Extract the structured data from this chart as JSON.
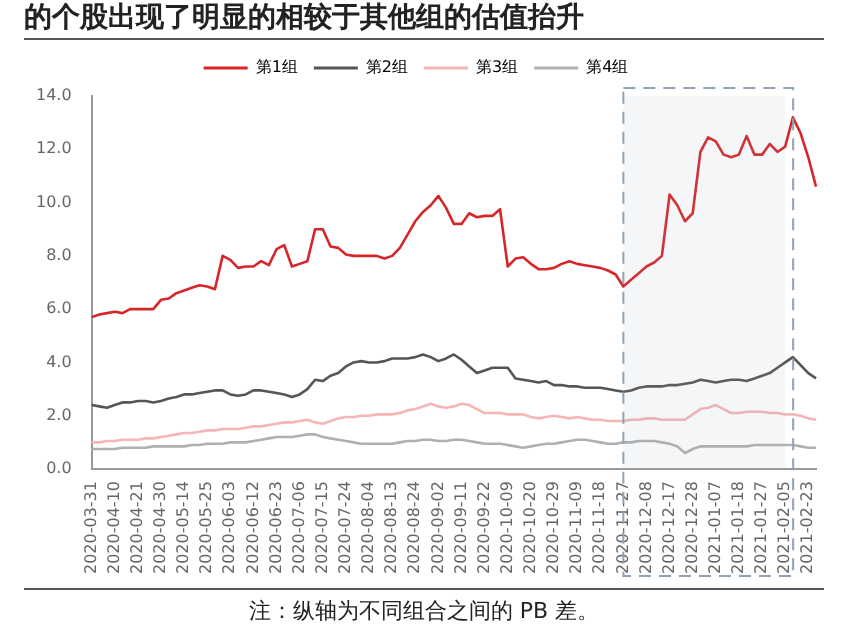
{
  "chart_data": {
    "type": "line",
    "title": "的个股出现了明显的相较于其他组的估值抬升",
    "annotations": [
      "注：纵轴为不同组合之间的 PB 差。"
    ],
    "categories": [
      "2020-03-31",
      null,
      null,
      "2020-04-10",
      null,
      null,
      "2020-04-21",
      null,
      null,
      "2020-04-30",
      null,
      null,
      "2020-05-14",
      null,
      null,
      "2020-05-25",
      null,
      null,
      "2020-06-03",
      null,
      null,
      "2020-06-12",
      null,
      null,
      "2020-06-23",
      null,
      null,
      "2020-07-06",
      null,
      null,
      "2020-07-15",
      null,
      null,
      "2020-07-24",
      null,
      null,
      "2020-08-04",
      null,
      null,
      "2020-08-13",
      null,
      null,
      "2020-08-24",
      null,
      null,
      "2020-09-02",
      null,
      null,
      "2020-09-11",
      null,
      null,
      "2020-09-22",
      null,
      null,
      "2020-10-09",
      null,
      null,
      "2020-10-20",
      null,
      null,
      "2020-10-29",
      null,
      null,
      "2020-11-09",
      null,
      null,
      "2020-11-18",
      null,
      null,
      "2020-11-27",
      null,
      null,
      "2020-12-08",
      null,
      null,
      "2020-12-17",
      null,
      null,
      "2020-12-28",
      null,
      null,
      "2021-01-07",
      null,
      null,
      "2021-01-18",
      null,
      null,
      "2021-01-27",
      null,
      null,
      "2021-02-05",
      null,
      null,
      "2021-02-23",
      null
    ],
    "series": [
      {
        "name": "第1组",
        "color": "#d7262a",
        "values": [
          5.7,
          5.8,
          5.85,
          5.9,
          5.85,
          6.0,
          6.0,
          6.0,
          6.0,
          6.35,
          6.4,
          6.6,
          6.7,
          6.8,
          6.9,
          6.85,
          6.75,
          8.0,
          7.85,
          7.55,
          7.6,
          7.6,
          7.8,
          7.65,
          8.25,
          8.4,
          7.6,
          7.7,
          7.8,
          9.0,
          9.0,
          8.35,
          8.3,
          8.05,
          8.0,
          8.0,
          8.0,
          8.0,
          7.9,
          8.0,
          8.3,
          8.8,
          9.3,
          9.65,
          9.9,
          10.25,
          9.8,
          9.2,
          9.2,
          9.6,
          9.45,
          9.5,
          9.5,
          9.75,
          7.6,
          7.9,
          7.95,
          7.7,
          7.5,
          7.5,
          7.55,
          7.7,
          7.8,
          7.7,
          7.65,
          7.6,
          7.55,
          7.45,
          7.3,
          6.85,
          7.1,
          7.35,
          7.6,
          7.75,
          8.0,
          10.3,
          9.9,
          9.3,
          9.6,
          11.9,
          12.45,
          12.3,
          11.8,
          11.7,
          11.8,
          12.5,
          11.8,
          11.8,
          12.2,
          11.9,
          12.1,
          13.2,
          12.6,
          11.7,
          10.6
        ]
      },
      {
        "name": "第2组",
        "color": "#555555",
        "values": [
          2.4,
          2.35,
          2.3,
          2.4,
          2.5,
          2.5,
          2.55,
          2.55,
          2.5,
          2.55,
          2.65,
          2.7,
          2.8,
          2.8,
          2.85,
          2.9,
          2.95,
          2.95,
          2.8,
          2.75,
          2.8,
          2.95,
          2.95,
          2.9,
          2.85,
          2.8,
          2.7,
          2.8,
          3.0,
          3.35,
          3.3,
          3.5,
          3.6,
          3.85,
          4.0,
          4.05,
          4.0,
          4.0,
          4.05,
          4.15,
          4.15,
          4.15,
          4.2,
          4.3,
          4.2,
          4.05,
          4.15,
          4.3,
          4.1,
          3.85,
          3.6,
          3.7,
          3.8,
          3.8,
          3.8,
          3.4,
          3.35,
          3.3,
          3.25,
          3.3,
          3.15,
          3.15,
          3.1,
          3.1,
          3.05,
          3.05,
          3.05,
          3.0,
          2.95,
          2.9,
          2.95,
          3.05,
          3.1,
          3.1,
          3.1,
          3.15,
          3.15,
          3.2,
          3.25,
          3.35,
          3.3,
          3.25,
          3.3,
          3.35,
          3.35,
          3.3,
          3.4,
          3.5,
          3.6,
          3.8,
          4.0,
          4.2,
          3.9,
          3.6,
          3.4
        ]
      },
      {
        "name": "第3组",
        "color": "#f4b6b6",
        "values": [
          1.0,
          1.0,
          1.05,
          1.05,
          1.1,
          1.1,
          1.1,
          1.15,
          1.15,
          1.2,
          1.25,
          1.3,
          1.35,
          1.35,
          1.4,
          1.45,
          1.45,
          1.5,
          1.5,
          1.5,
          1.55,
          1.6,
          1.6,
          1.65,
          1.7,
          1.75,
          1.75,
          1.8,
          1.85,
          1.75,
          1.7,
          1.8,
          1.9,
          1.95,
          1.95,
          2.0,
          2.0,
          2.05,
          2.05,
          2.05,
          2.1,
          2.2,
          2.25,
          2.35,
          2.45,
          2.35,
          2.3,
          2.35,
          2.45,
          2.4,
          2.25,
          2.1,
          2.1,
          2.1,
          2.05,
          2.05,
          2.05,
          1.95,
          1.9,
          1.95,
          2.0,
          1.95,
          1.9,
          1.95,
          1.9,
          1.85,
          1.85,
          1.8,
          1.8,
          1.8,
          1.85,
          1.85,
          1.9,
          1.9,
          1.85,
          1.85,
          1.85,
          1.85,
          2.05,
          2.25,
          2.3,
          2.4,
          2.25,
          2.1,
          2.1,
          2.15,
          2.15,
          2.15,
          2.1,
          2.1,
          2.05,
          2.05,
          2.0,
          1.9,
          1.85
        ]
      },
      {
        "name": "第4组",
        "color": "#b0b0b0",
        "values": [
          0.75,
          0.75,
          0.75,
          0.75,
          0.8,
          0.8,
          0.8,
          0.8,
          0.85,
          0.85,
          0.85,
          0.85,
          0.85,
          0.9,
          0.9,
          0.95,
          0.95,
          0.95,
          1.0,
          1.0,
          1.0,
          1.05,
          1.1,
          1.15,
          1.2,
          1.2,
          1.2,
          1.25,
          1.3,
          1.3,
          1.2,
          1.15,
          1.1,
          1.05,
          1.0,
          0.95,
          0.95,
          0.95,
          0.95,
          0.95,
          1.0,
          1.05,
          1.05,
          1.1,
          1.1,
          1.05,
          1.05,
          1.1,
          1.1,
          1.05,
          1.0,
          0.95,
          0.95,
          0.95,
          0.9,
          0.85,
          0.8,
          0.85,
          0.9,
          0.95,
          0.95,
          1.0,
          1.05,
          1.1,
          1.1,
          1.05,
          1.0,
          0.95,
          0.95,
          1.0,
          1.0,
          1.05,
          1.05,
          1.05,
          1.0,
          0.95,
          0.85,
          0.6,
          0.75,
          0.85,
          0.85,
          0.85,
          0.85,
          0.85,
          0.85,
          0.85,
          0.9,
          0.9,
          0.9,
          0.9,
          0.9,
          0.9,
          0.85,
          0.8,
          0.8
        ]
      }
    ],
    "ylim": [
      0,
      14
    ],
    "yticks": [
      {
        "value": 0,
        "label": "0.0"
      },
      {
        "value": 2,
        "label": "2.0"
      },
      {
        "value": 4,
        "label": "4.0"
      },
      {
        "value": 6,
        "label": "6.0"
      },
      {
        "value": 8,
        "label": "8.0"
      },
      {
        "value": 10,
        "label": "10.0"
      },
      {
        "value": 12,
        "label": "12.0"
      },
      {
        "value": 14,
        "label": "14.0"
      }
    ],
    "bands": [
      {
        "axis": "x",
        "from": "2020-11-27",
        "to": "2021-02-05",
        "color": "#8fa3b8"
      }
    ],
    "grid": false,
    "legend": "top",
    "marker": "none",
    "line_style": "solid"
  }
}
